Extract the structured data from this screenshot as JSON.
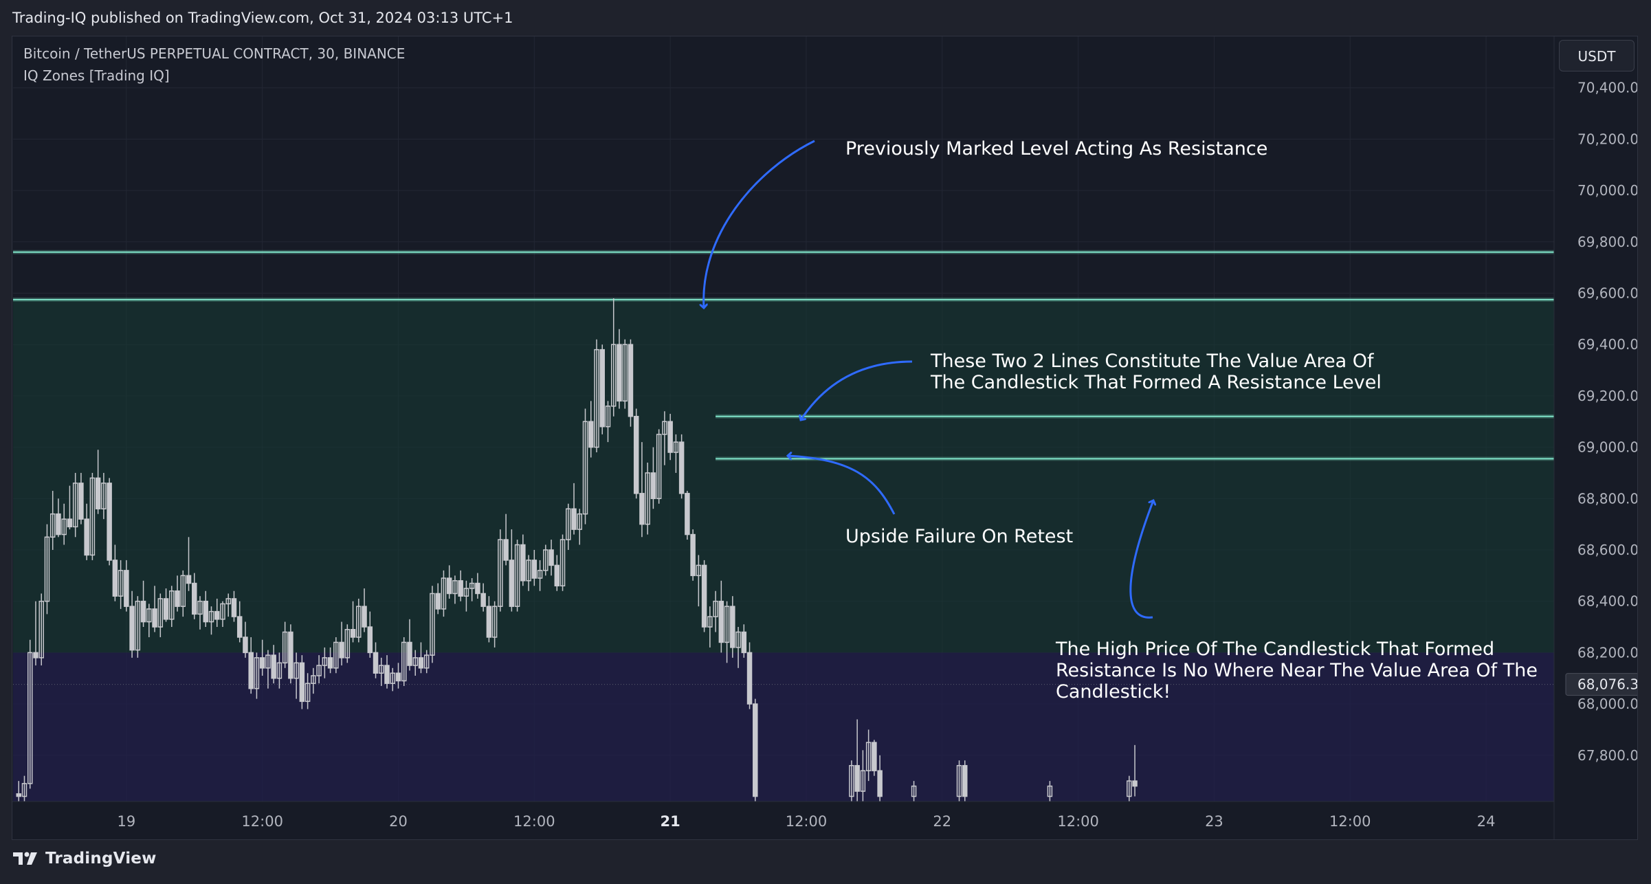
{
  "header": {
    "publisher": "Trading-IQ published on TradingView.com, Oct 31, 2024 03:13 UTC+1",
    "symbol": "Bitcoin / TetherUS PERPETUAL CONTRACT, 30, BINANCE",
    "indicator": "IQ Zones [Trading IQ]",
    "currency": "USDT"
  },
  "footer": {
    "logo_text": "TradingView",
    "logo_icon": "tradingview-logo-icon"
  },
  "colors": {
    "background": "#171b26",
    "candle": "#c8c9ce",
    "level_line": "#7fe3c8",
    "annotation_arrow": "#2f6bff",
    "zone_green": "#163a33",
    "zone_purple": "#221f4a",
    "price_tag_bg": "#2a2e39"
  },
  "annotations": {
    "resistance": "Previously Marked Level Acting As Resistance",
    "value_area_line1": "These Two 2 Lines Constitute The Value Area Of",
    "value_area_line2": "The Candlestick That Formed A Resistance Level",
    "failure": "Upside Failure On Retest",
    "high_line1": "The High Price Of The Candlestick That Formed",
    "high_line2": "Resistance Is No Where Near The Value Area Of The",
    "high_line3": "Candlestick!"
  },
  "chart_data": {
    "type": "candlestick",
    "symbol": "Bitcoin / TetherUS PERPETUAL CONTRACT, 30, BINANCE",
    "interval": "30",
    "y_axis": {
      "ticks": [
        "70,400.0",
        "70,200.0",
        "70,000.0",
        "69,800.0",
        "69,600.0",
        "69,400.0",
        "69,200.0",
        "69,000.0",
        "68,800.0",
        "68,600.0",
        "68,400.0",
        "68,200.0",
        "68,000.0",
        "67,800.0"
      ],
      "tick_values": [
        70400,
        70200,
        70000,
        69800,
        69600,
        69400,
        69200,
        69000,
        68800,
        68600,
        68400,
        68200,
        68000,
        67800
      ],
      "range": [
        67620,
        70600
      ],
      "side": "right"
    },
    "x_axis": {
      "ticks": [
        "19",
        "12:00",
        "20",
        "12:00",
        "21",
        "12:00",
        "22",
        "12:00",
        "23",
        "12:00",
        "24"
      ],
      "tick_hours": [
        0,
        12,
        24,
        36,
        48,
        60,
        72,
        84,
        96,
        108,
        120
      ],
      "bold_ticks": [
        4
      ],
      "range_hours": [
        -10,
        126
      ]
    },
    "last_price": {
      "value": 68076.3,
      "label": "68,076.3"
    },
    "levels": [
      {
        "name": "resistance-level-upper",
        "value": 69760,
        "from_hour": -10,
        "to_hour": 126
      },
      {
        "name": "resistance-level-lower",
        "value": 69575,
        "from_hour": -10,
        "to_hour": 126
      },
      {
        "name": "value-area-high",
        "value": 69120,
        "from_hour": 52.0,
        "to_hour": 126
      },
      {
        "name": "value-area-low",
        "value": 68955,
        "from_hour": 52.0,
        "to_hour": 126
      }
    ],
    "zones": [
      {
        "name": "green-zone",
        "from": 68200,
        "to": 69575
      },
      {
        "name": "purple-zone",
        "from": 67620,
        "to": 68200
      }
    ],
    "candles": [
      [
        -9.5,
        67650,
        67700,
        67620,
        67640
      ],
      [
        -9.0,
        67640,
        67720,
        67620,
        67690
      ],
      [
        -8.5,
        67690,
        68250,
        67670,
        68200
      ],
      [
        -8.0,
        68200,
        68400,
        68150,
        68180
      ],
      [
        -7.5,
        68180,
        68430,
        68150,
        68400
      ],
      [
        -7.0,
        68400,
        68700,
        68350,
        68650
      ],
      [
        -6.5,
        68650,
        68830,
        68600,
        68740
      ],
      [
        -6.0,
        68740,
        68800,
        68650,
        68660
      ],
      [
        -5.5,
        68660,
        68780,
        68620,
        68720
      ],
      [
        -5.0,
        68720,
        68850,
        68680,
        68690
      ],
      [
        -4.5,
        68690,
        68900,
        68650,
        68860
      ],
      [
        -4.0,
        68860,
        68900,
        68700,
        68720
      ],
      [
        -3.5,
        68720,
        68780,
        68560,
        68580
      ],
      [
        -3.0,
        68580,
        68900,
        68560,
        68880
      ],
      [
        -2.5,
        68880,
        68990,
        68740,
        68760
      ],
      [
        -2.0,
        68760,
        68900,
        68720,
        68860
      ],
      [
        -1.5,
        68860,
        68880,
        68540,
        68560
      ],
      [
        -1.0,
        68560,
        68620,
        68400,
        68420
      ],
      [
        -0.5,
        68420,
        68560,
        68370,
        68520
      ],
      [
        0.0,
        68520,
        68560,
        68360,
        68380
      ],
      [
        0.5,
        68380,
        68440,
        68180,
        68210
      ],
      [
        1.0,
        68210,
        68420,
        68180,
        68400
      ],
      [
        1.5,
        68400,
        68480,
        68300,
        68320
      ],
      [
        2.0,
        68320,
        68390,
        68260,
        68370
      ],
      [
        2.5,
        68370,
        68460,
        68280,
        68300
      ],
      [
        3.0,
        68300,
        68430,
        68260,
        68410
      ],
      [
        3.5,
        68410,
        68450,
        68320,
        68330
      ],
      [
        4.0,
        68330,
        68460,
        68300,
        68440
      ],
      [
        4.5,
        68440,
        68500,
        68360,
        68380
      ],
      [
        5.0,
        68380,
        68520,
        68340,
        68500
      ],
      [
        5.5,
        68500,
        68650,
        68440,
        68470
      ],
      [
        6.0,
        68470,
        68510,
        68330,
        68350
      ],
      [
        6.5,
        68350,
        68420,
        68290,
        68400
      ],
      [
        7.0,
        68400,
        68440,
        68300,
        68320
      ],
      [
        7.5,
        68320,
        68380,
        68270,
        68360
      ],
      [
        8.0,
        68360,
        68410,
        68300,
        68330
      ],
      [
        8.5,
        68330,
        68400,
        68300,
        68390
      ],
      [
        9.0,
        68390,
        68430,
        68340,
        68410
      ],
      [
        9.5,
        68410,
        68440,
        68320,
        68340
      ],
      [
        10.0,
        68340,
        68400,
        68240,
        68260
      ],
      [
        10.5,
        68260,
        68320,
        68180,
        68200
      ],
      [
        11.0,
        68200,
        68260,
        68040,
        68060
      ],
      [
        11.5,
        68060,
        68200,
        68020,
        68180
      ],
      [
        12.0,
        68180,
        68250,
        68110,
        68140
      ],
      [
        12.5,
        68140,
        68210,
        68060,
        68190
      ],
      [
        13.0,
        68190,
        68230,
        68080,
        68100
      ],
      [
        13.5,
        68100,
        68200,
        68060,
        68160
      ],
      [
        14.0,
        68160,
        68320,
        68140,
        68280
      ],
      [
        14.5,
        68280,
        68310,
        68080,
        68100
      ],
      [
        15.0,
        68100,
        68200,
        68020,
        68160
      ],
      [
        15.5,
        68160,
        68190,
        67980,
        68010
      ],
      [
        16.0,
        68010,
        68120,
        67980,
        68080
      ],
      [
        16.5,
        68080,
        68140,
        68040,
        68110
      ],
      [
        17.0,
        68110,
        68190,
        68080,
        68150
      ],
      [
        17.5,
        68150,
        68220,
        68100,
        68180
      ],
      [
        18.0,
        68180,
        68220,
        68120,
        68140
      ],
      [
        18.5,
        68140,
        68260,
        68120,
        68240
      ],
      [
        19.0,
        68240,
        68320,
        68150,
        68180
      ],
      [
        19.5,
        68180,
        68310,
        68160,
        68290
      ],
      [
        20.0,
        68290,
        68400,
        68240,
        68260
      ],
      [
        20.5,
        68260,
        68410,
        68240,
        68380
      ],
      [
        21.0,
        68380,
        68450,
        68280,
        68300
      ],
      [
        21.5,
        68300,
        68360,
        68180,
        68200
      ],
      [
        22.0,
        68200,
        68240,
        68100,
        68120
      ],
      [
        22.5,
        68120,
        68180,
        68070,
        68150
      ],
      [
        23.0,
        68150,
        68190,
        68060,
        68080
      ],
      [
        23.5,
        68080,
        68140,
        68050,
        68120
      ],
      [
        24.0,
        68120,
        68160,
        68060,
        68090
      ],
      [
        24.5,
        68090,
        68260,
        68070,
        68240
      ],
      [
        25.0,
        68240,
        68330,
        68130,
        68150
      ],
      [
        25.5,
        68150,
        68210,
        68110,
        68180
      ],
      [
        26.0,
        68180,
        68240,
        68120,
        68140
      ],
      [
        26.5,
        68140,
        68210,
        68120,
        68190
      ],
      [
        27.0,
        68190,
        68460,
        68160,
        68430
      ],
      [
        27.5,
        68430,
        68470,
        68350,
        68370
      ],
      [
        28.0,
        68370,
        68520,
        68340,
        68490
      ],
      [
        28.5,
        68490,
        68540,
        68410,
        68430
      ],
      [
        29.0,
        68430,
        68500,
        68390,
        68480
      ],
      [
        29.5,
        68480,
        68520,
        68400,
        68420
      ],
      [
        30.0,
        68420,
        68480,
        68360,
        68450
      ],
      [
        30.5,
        68450,
        68490,
        68400,
        68470
      ],
      [
        31.0,
        68470,
        68510,
        68410,
        68430
      ],
      [
        31.5,
        68430,
        68470,
        68360,
        68380
      ],
      [
        32.0,
        68380,
        68420,
        68240,
        68260
      ],
      [
        32.5,
        68260,
        68400,
        68220,
        68380
      ],
      [
        33.0,
        68380,
        68680,
        68360,
        68640
      ],
      [
        33.5,
        68640,
        68740,
        68540,
        68560
      ],
      [
        34.0,
        68560,
        68680,
        68360,
        68380
      ],
      [
        34.5,
        68380,
        68640,
        68360,
        68620
      ],
      [
        35.0,
        68620,
        68660,
        68460,
        68480
      ],
      [
        35.5,
        68480,
        68580,
        68440,
        68560
      ],
      [
        36.0,
        68560,
        68600,
        68460,
        68490
      ],
      [
        36.5,
        68490,
        68560,
        68440,
        68520
      ],
      [
        37.0,
        68520,
        68620,
        68500,
        68600
      ],
      [
        37.5,
        68600,
        68640,
        68500,
        68540
      ],
      [
        38.0,
        68540,
        68580,
        68440,
        68460
      ],
      [
        38.5,
        68460,
        68660,
        68440,
        68640
      ],
      [
        39.0,
        68640,
        68780,
        68600,
        68760
      ],
      [
        39.5,
        68760,
        68860,
        68660,
        68680
      ],
      [
        40.0,
        68680,
        68760,
        68620,
        68740
      ],
      [
        40.5,
        68740,
        69150,
        68700,
        69100
      ],
      [
        41.0,
        69100,
        69180,
        68960,
        69000
      ],
      [
        41.5,
        69000,
        69420,
        68980,
        69380
      ],
      [
        42.0,
        69380,
        69400,
        69050,
        69080
      ],
      [
        42.5,
        69080,
        69180,
        69020,
        69160
      ],
      [
        43.0,
        69160,
        69580,
        69120,
        69400
      ],
      [
        43.5,
        69400,
        69460,
        69150,
        69180
      ],
      [
        44.0,
        69180,
        69420,
        69150,
        69400
      ],
      [
        44.5,
        69400,
        69420,
        69080,
        69120
      ],
      [
        45.0,
        69120,
        69150,
        68800,
        68820
      ],
      [
        45.5,
        68820,
        69020,
        68650,
        68700
      ],
      [
        46.0,
        68700,
        68940,
        68660,
        68900
      ],
      [
        46.5,
        68900,
        69000,
        68760,
        68800
      ],
      [
        47.0,
        68800,
        69070,
        68780,
        69050
      ],
      [
        47.5,
        69050,
        69140,
        68930,
        69100
      ],
      [
        48.0,
        69100,
        69130,
        68950,
        68980
      ],
      [
        48.5,
        68980,
        69050,
        68900,
        69020
      ],
      [
        49.0,
        69020,
        69050,
        68800,
        68820
      ],
      [
        49.5,
        68820,
        68830,
        68640,
        68660
      ],
      [
        50.0,
        68660,
        68680,
        68480,
        68500
      ],
      [
        50.5,
        68500,
        68580,
        68380,
        68540
      ],
      [
        51.0,
        68540,
        68560,
        68280,
        68300
      ],
      [
        51.5,
        68300,
        68380,
        68220,
        68340
      ],
      [
        52.0,
        68340,
        68440,
        68280,
        68400
      ],
      [
        52.5,
        68400,
        68480,
        68200,
        68240
      ],
      [
        53.0,
        68240,
        68400,
        68160,
        68380
      ],
      [
        53.5,
        68380,
        68420,
        68180,
        68220
      ],
      [
        54.0,
        68220,
        68300,
        68140,
        68280
      ],
      [
        54.5,
        68280,
        68310,
        68180,
        68200
      ],
      [
        55.0,
        68200,
        68240,
        67980,
        68000
      ],
      [
        55.5,
        68000,
        68020,
        67620,
        67640
      ],
      [
        64.0,
        67640,
        67780,
        67620,
        67760
      ],
      [
        64.5,
        67760,
        67940,
        67620,
        67660
      ],
      [
        65.0,
        67660,
        67820,
        67620,
        67740
      ],
      [
        65.5,
        67740,
        67900,
        67700,
        67850
      ],
      [
        66.0,
        67850,
        67860,
        67720,
        67740
      ],
      [
        66.5,
        67740,
        67800,
        67620,
        67640
      ],
      [
        69.5,
        67640,
        67700,
        67620,
        67680
      ],
      [
        73.5,
        67640,
        67780,
        67620,
        67760
      ],
      [
        74.0,
        67760,
        67780,
        67620,
        67640
      ],
      [
        81.5,
        67640,
        67700,
        67620,
        67680
      ],
      [
        88.5,
        67640,
        67720,
        67620,
        67700
      ],
      [
        89.0,
        67700,
        67840,
        67640,
        67680
      ]
    ]
  }
}
